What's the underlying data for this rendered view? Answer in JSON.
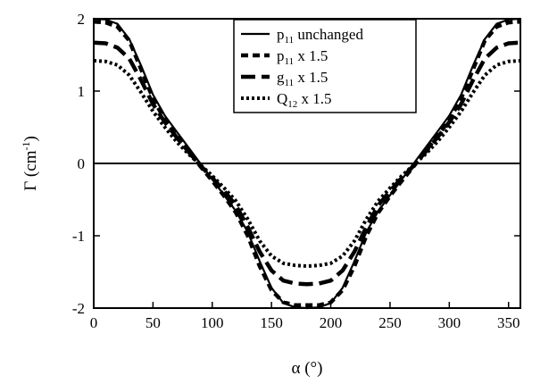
{
  "chart_data": {
    "type": "line",
    "xlabel": "α (°)",
    "ylabel_main": "Γ",
    "ylabel_unit": "(cm",
    "ylabel_exp": "-1",
    "ylabel_close": ")",
    "xlim": [
      0,
      360
    ],
    "ylim": [
      -2,
      2
    ],
    "xticks": [
      0,
      50,
      100,
      150,
      200,
      250,
      300,
      350
    ],
    "yticks": [
      -2,
      -1,
      0,
      1,
      2
    ],
    "grid": false,
    "zero_line": true,
    "legend_position": "top-center",
    "series": [
      {
        "name": "p11 unchanged",
        "label_base": "p",
        "label_sub": "11",
        "label_rest": " unchanged",
        "style": "solid",
        "points": [
          [
            0,
            2.0
          ],
          [
            10,
            1.99
          ],
          [
            20,
            1.93
          ],
          [
            30,
            1.72
          ],
          [
            40,
            1.35
          ],
          [
            50,
            0.95
          ],
          [
            60,
            0.66
          ],
          [
            70,
            0.44
          ],
          [
            80,
            0.22
          ],
          [
            90,
            0.0
          ],
          [
            100,
            -0.22
          ],
          [
            110,
            -0.44
          ],
          [
            120,
            -0.66
          ],
          [
            130,
            -0.95
          ],
          [
            140,
            -1.35
          ],
          [
            150,
            -1.72
          ],
          [
            160,
            -1.93
          ],
          [
            170,
            -1.99
          ],
          [
            180,
            -2.0
          ],
          [
            190,
            -1.99
          ],
          [
            200,
            -1.93
          ],
          [
            210,
            -1.72
          ],
          [
            220,
            -1.35
          ],
          [
            230,
            -0.95
          ],
          [
            240,
            -0.66
          ],
          [
            250,
            -0.44
          ],
          [
            260,
            -0.22
          ],
          [
            270,
            0.0
          ],
          [
            280,
            0.22
          ],
          [
            290,
            0.44
          ],
          [
            300,
            0.66
          ],
          [
            310,
            0.95
          ],
          [
            320,
            1.35
          ],
          [
            330,
            1.72
          ],
          [
            340,
            1.93
          ],
          [
            350,
            1.99
          ],
          [
            360,
            2.0
          ]
        ]
      },
      {
        "name": "p11 x 1.5",
        "label_base": "p",
        "label_sub": "11",
        "label_rest": " x 1.5",
        "style": "dashed",
        "points": [
          [
            0,
            1.96
          ],
          [
            10,
            1.95
          ],
          [
            20,
            1.89
          ],
          [
            30,
            1.7
          ],
          [
            40,
            1.3
          ],
          [
            50,
            0.9
          ],
          [
            60,
            0.6
          ],
          [
            70,
            0.38
          ],
          [
            80,
            0.17
          ],
          [
            90,
            -0.04
          ],
          [
            100,
            -0.24
          ],
          [
            110,
            -0.45
          ],
          [
            120,
            -0.68
          ],
          [
            130,
            -1.0
          ],
          [
            140,
            -1.42
          ],
          [
            150,
            -1.75
          ],
          [
            160,
            -1.92
          ],
          [
            170,
            -1.96
          ],
          [
            180,
            -1.96
          ],
          [
            190,
            -1.96
          ],
          [
            200,
            -1.92
          ],
          [
            210,
            -1.75
          ],
          [
            220,
            -1.42
          ],
          [
            230,
            -1.0
          ],
          [
            240,
            -0.68
          ],
          [
            250,
            -0.45
          ],
          [
            260,
            -0.24
          ],
          [
            270,
            -0.04
          ],
          [
            280,
            0.17
          ],
          [
            290,
            0.38
          ],
          [
            300,
            0.6
          ],
          [
            310,
            0.9
          ],
          [
            320,
            1.3
          ],
          [
            330,
            1.7
          ],
          [
            340,
            1.89
          ],
          [
            350,
            1.95
          ],
          [
            360,
            1.96
          ]
        ]
      },
      {
        "name": "g11 x 1.5",
        "label_base": "g",
        "label_sub": "11",
        "label_rest": " x 1.5",
        "style": "longdash",
        "points": [
          [
            0,
            1.67
          ],
          [
            10,
            1.66
          ],
          [
            20,
            1.6
          ],
          [
            30,
            1.45
          ],
          [
            40,
            1.15
          ],
          [
            50,
            0.82
          ],
          [
            60,
            0.57
          ],
          [
            70,
            0.36
          ],
          [
            80,
            0.16
          ],
          [
            90,
            -0.03
          ],
          [
            100,
            -0.2
          ],
          [
            110,
            -0.38
          ],
          [
            120,
            -0.58
          ],
          [
            130,
            -0.88
          ],
          [
            140,
            -1.22
          ],
          [
            150,
            -1.48
          ],
          [
            160,
            -1.62
          ],
          [
            170,
            -1.66
          ],
          [
            180,
            -1.67
          ],
          [
            190,
            -1.66
          ],
          [
            200,
            -1.62
          ],
          [
            210,
            -1.48
          ],
          [
            220,
            -1.22
          ],
          [
            230,
            -0.88
          ],
          [
            240,
            -0.58
          ],
          [
            250,
            -0.38
          ],
          [
            260,
            -0.2
          ],
          [
            270,
            -0.03
          ],
          [
            280,
            0.16
          ],
          [
            290,
            0.36
          ],
          [
            300,
            0.57
          ],
          [
            310,
            0.82
          ],
          [
            320,
            1.15
          ],
          [
            330,
            1.45
          ],
          [
            340,
            1.6
          ],
          [
            350,
            1.66
          ],
          [
            360,
            1.67
          ]
        ]
      },
      {
        "name": "Q12 x 1.5",
        "label_base": "Q",
        "label_sub": "12",
        "label_rest": " x 1.5",
        "style": "dotted",
        "points": [
          [
            0,
            1.42
          ],
          [
            10,
            1.41
          ],
          [
            20,
            1.36
          ],
          [
            30,
            1.22
          ],
          [
            40,
            0.98
          ],
          [
            50,
            0.72
          ],
          [
            60,
            0.5
          ],
          [
            70,
            0.3
          ],
          [
            80,
            0.13
          ],
          [
            90,
            -0.02
          ],
          [
            100,
            -0.17
          ],
          [
            110,
            -0.34
          ],
          [
            120,
            -0.52
          ],
          [
            130,
            -0.77
          ],
          [
            140,
            -1.07
          ],
          [
            150,
            -1.28
          ],
          [
            160,
            -1.38
          ],
          [
            170,
            -1.41
          ],
          [
            180,
            -1.42
          ],
          [
            190,
            -1.41
          ],
          [
            200,
            -1.38
          ],
          [
            210,
            -1.28
          ],
          [
            220,
            -1.07
          ],
          [
            230,
            -0.77
          ],
          [
            240,
            -0.52
          ],
          [
            250,
            -0.34
          ],
          [
            260,
            -0.17
          ],
          [
            270,
            -0.02
          ],
          [
            280,
            0.13
          ],
          [
            290,
            0.3
          ],
          [
            300,
            0.5
          ],
          [
            310,
            0.72
          ],
          [
            320,
            0.98
          ],
          [
            330,
            1.22
          ],
          [
            340,
            1.36
          ],
          [
            350,
            1.41
          ],
          [
            360,
            1.42
          ]
        ]
      }
    ]
  }
}
